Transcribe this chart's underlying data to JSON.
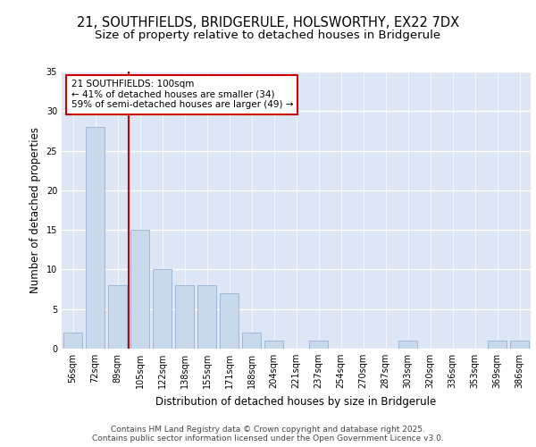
{
  "title_line1": "21, SOUTHFIELDS, BRIDGERULE, HOLSWORTHY, EX22 7DX",
  "title_line2": "Size of property relative to detached houses in Bridgerule",
  "xlabel": "Distribution of detached houses by size in Bridgerule",
  "ylabel": "Number of detached properties",
  "categories": [
    "56sqm",
    "72sqm",
    "89sqm",
    "105sqm",
    "122sqm",
    "138sqm",
    "155sqm",
    "171sqm",
    "188sqm",
    "204sqm",
    "221sqm",
    "237sqm",
    "254sqm",
    "270sqm",
    "287sqm",
    "303sqm",
    "320sqm",
    "336sqm",
    "353sqm",
    "369sqm",
    "386sqm"
  ],
  "values": [
    2,
    28,
    8,
    15,
    10,
    8,
    8,
    7,
    2,
    1,
    0,
    1,
    0,
    0,
    0,
    1,
    0,
    0,
    0,
    1,
    1
  ],
  "bar_color": "#c9d9ec",
  "bar_edge_color": "#a0b8d8",
  "background_color": "#dce6f5",
  "grid_color": "#ffffff",
  "annotation_box_text": "21 SOUTHFIELDS: 100sqm\n← 41% of detached houses are smaller (34)\n59% of semi-detached houses are larger (49) →",
  "annotation_box_color": "#ffffff",
  "annotation_box_edge_color": "#cc0000",
  "vline_color": "#cc0000",
  "vline_x_index": 2,
  "ylim": [
    0,
    35
  ],
  "yticks": [
    0,
    5,
    10,
    15,
    20,
    25,
    30,
    35
  ],
  "footer_line1": "Contains HM Land Registry data © Crown copyright and database right 2025.",
  "footer_line2": "Contains public sector information licensed under the Open Government Licence v3.0.",
  "title_fontsize": 10.5,
  "subtitle_fontsize": 9.5,
  "axis_label_fontsize": 8.5,
  "tick_fontsize": 7,
  "annotation_fontsize": 7.5,
  "footer_fontsize": 6.5
}
